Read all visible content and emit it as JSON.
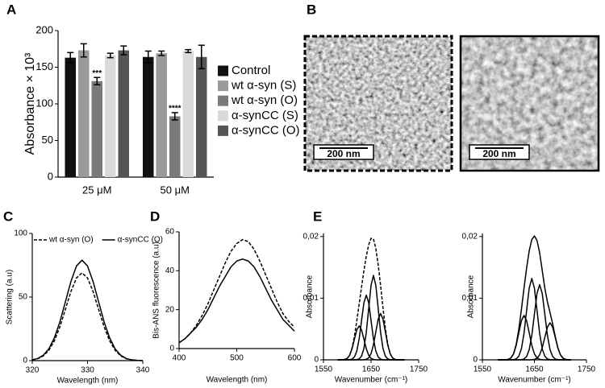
{
  "chart_data": [
    {
      "type": "bar",
      "panel": "A",
      "ylabel": "Absorbance × 10³",
      "categories": [
        "25 μM",
        "50 μM"
      ],
      "series": [
        {
          "name": "Control",
          "color": "#111111",
          "values": [
            163,
            164
          ],
          "errors": [
            7,
            8
          ]
        },
        {
          "name": "wt α-syn (S)",
          "color": "#9a9a9a",
          "values": [
            173,
            169
          ],
          "errors": [
            9,
            3
          ]
        },
        {
          "name": "wt α-syn (O)",
          "color": "#7a7a7a",
          "values": [
            131,
            83
          ],
          "errors": [
            5,
            5
          ],
          "significance": [
            "***",
            "****"
          ]
        },
        {
          "name": "α-synCC (S)",
          "color": "#d9d9d9",
          "values": [
            166,
            172
          ],
          "errors": [
            3,
            2
          ]
        },
        {
          "name": "α-synCC (O)",
          "color": "#555555",
          "values": [
            173,
            164
          ],
          "errors": [
            6,
            16
          ]
        }
      ],
      "ylim": [
        0,
        200
      ],
      "yticks": [
        0,
        50,
        100,
        150,
        200
      ],
      "legend": "right"
    },
    {
      "type": "line",
      "panel": "C",
      "xlabel": "Wavelength (nm)",
      "ylabel": "Scattering (a.u)",
      "x": [
        320,
        321,
        322,
        323,
        324,
        325,
        326,
        327,
        328,
        329,
        330,
        331,
        332,
        333,
        334,
        335,
        336,
        337,
        338,
        339,
        340
      ],
      "series": [
        {
          "name": "wt α-syn (O)",
          "color": "#000000",
          "dash": true,
          "values": [
            0.6,
            1.5,
            3.7,
            8.1,
            15.6,
            26.6,
            40.4,
            54.4,
            65,
            69,
            65,
            54.4,
            40.4,
            26.6,
            15.6,
            8.1,
            3.7,
            1.5,
            0.6,
            0.2,
            0.0
          ]
        },
        {
          "name": "α-synCC (O)",
          "color": "#000000",
          "dash": false,
          "values": [
            0.6,
            1.7,
            4.3,
            9.3,
            17.9,
            30.5,
            46.3,
            62.3,
            74.4,
            79,
            74.4,
            62.3,
            46.3,
            30.5,
            17.9,
            9.3,
            4.3,
            1.7,
            0.6,
            0.2,
            0.1
          ]
        }
      ],
      "xlim": [
        320,
        340
      ],
      "xticks": [
        320,
        330,
        340
      ],
      "ylim": [
        0,
        100
      ],
      "yticks": [
        0,
        50,
        100
      ],
      "legend": "top"
    },
    {
      "type": "line",
      "panel": "D",
      "xlabel": "Wavelength (nm)",
      "ylabel": "Bis-ANS fluorescence (a.u)",
      "x": [
        400,
        410,
        420,
        430,
        440,
        450,
        460,
        470,
        480,
        490,
        500,
        510,
        520,
        530,
        540,
        550,
        560,
        570,
        580,
        590,
        600
      ],
      "series": [
        {
          "color": "#000000",
          "dash": true,
          "values": [
            3,
            5,
            8,
            12,
            17,
            23,
            30,
            37,
            44,
            50,
            54,
            56,
            55,
            51,
            45,
            38,
            31,
            24,
            18,
            14,
            11
          ]
        },
        {
          "color": "#000000",
          "dash": false,
          "values": [
            3,
            5,
            8,
            11,
            15,
            20,
            26,
            32,
            37,
            42,
            45,
            46,
            45,
            42,
            37,
            31,
            25,
            20,
            15,
            12,
            9
          ]
        }
      ],
      "xlim": [
        400,
        600
      ],
      "xticks": [
        400,
        500,
        600
      ],
      "ylim": [
        0,
        60
      ],
      "yticks": [
        0,
        20,
        40,
        60
      ]
    },
    {
      "type": "line",
      "panel": "E",
      "xlabel": "Wavenumber (cm⁻¹)",
      "ylabel": "Absorbance",
      "x": [
        1580,
        1585,
        1590,
        1595,
        1600,
        1605,
        1610,
        1615,
        1620,
        1625,
        1630,
        1635,
        1640,
        1645,
        1650,
        1655,
        1660,
        1665,
        1670,
        1675,
        1680,
        1685,
        1690,
        1695,
        1700,
        1705,
        1710,
        1715,
        1720
      ],
      "series": [
        {
          "color": "#000000",
          "dash": true,
          "values": [
            0,
            0,
            1e-05,
            6e-05,
            0.00024,
            0.00076,
            0.00191,
            0.0038,
            0.0063,
            0.00906,
            0.01182,
            0.01448,
            0.01682,
            0.01865,
            0.01971,
            0.01961,
            0.01807,
            0.01539,
            0.01207,
            0.00849,
            0.00515,
            0.00259,
            0.00104,
            0.00033,
            8e-05,
            2e-05,
            0,
            0,
            0
          ]
        },
        {
          "color": "#000000",
          "dash": false,
          "values": [
            0,
            0,
            1e-05,
            6e-05,
            0.00024,
            0.00074,
            0.00179,
            0.00334,
            0.00485,
            0.0055,
            0.00485,
            0.00334,
            0.00179,
            0.00074,
            0.00024,
            6e-05,
            1e-05,
            0,
            0,
            0,
            0,
            0,
            0,
            0,
            0,
            0,
            0,
            0,
            0
          ]
        },
        {
          "color": "#000000",
          "dash": false,
          "values": [
            0,
            0,
            0,
            0,
            0,
            2e-05,
            0.00012,
            0.00046,
            0.00142,
            0.00341,
            0.00637,
            0.00927,
            0.0105,
            0.00927,
            0.00637,
            0.00341,
            0.00142,
            0.00046,
            0.00012,
            2e-05,
            0,
            0,
            0,
            0,
            0,
            0,
            0,
            0,
            0
          ]
        },
        {
          "color": "#000000",
          "dash": false,
          "values": [
            0,
            0,
            0,
            0,
            0,
            0,
            0,
            0,
            3e-05,
            0.00015,
            0.0006,
            0.00185,
            0.00445,
            0.00831,
            0.01209,
            0.0137,
            0.01209,
            0.00831,
            0.00445,
            0.00185,
            0.0006,
            0.00015,
            3e-05,
            0,
            0,
            0,
            0,
            0,
            0
          ]
        },
        {
          "color": "#000000",
          "dash": false,
          "values": [
            0,
            0,
            0,
            0,
            0,
            0,
            0,
            0,
            0,
            0,
            0,
            2e-05,
            8e-05,
            0.00033,
            0.00101,
            0.00244,
            0.00455,
            0.00662,
            0.0075,
            0.00662,
            0.00455,
            0.00244,
            0.00101,
            0.00033,
            8e-05,
            2e-05,
            0,
            0,
            0
          ]
        }
      ],
      "xlim": [
        1550,
        1750
      ],
      "xticks": [
        1550,
        1650,
        1750
      ],
      "ylim": [
        0,
        0.0205
      ],
      "yticks": [
        0,
        {
          "value": 0.01,
          "label": "0,01"
        },
        {
          "value": 0.02,
          "label": "0,02"
        }
      ]
    },
    {
      "type": "line",
      "xlabel": "Wavenumber (cm⁻¹)",
      "ylabel": "Absorbance",
      "x": [
        1580,
        1585,
        1590,
        1595,
        1600,
        1605,
        1610,
        1615,
        1620,
        1625,
        1630,
        1635,
        1640,
        1645,
        1650,
        1655,
        1660,
        1665,
        1670,
        1675,
        1680,
        1685,
        1690,
        1695,
        1700,
        1705,
        1710,
        1715,
        1720
      ],
      "series": [
        {
          "color": "#000000",
          "dash": false,
          "values": [
            0,
            0,
            0,
            2e-05,
            8e-05,
            0.00032,
            0.001,
            0.00249,
            0.00495,
            0.00817,
            0.01163,
            0.0149,
            0.01767,
            0.01951,
            0.02009,
            0.01936,
            0.01738,
            0.01453,
            0.01162,
            0.00941,
            0.00768,
            0.00584,
            0.00378,
            0.00198,
            0.00081,
            0.00026,
            7e-05,
            1e-05,
            0
          ]
        },
        {
          "color": "#000000",
          "dash": false,
          "values": [
            0,
            0,
            0,
            2e-05,
            8e-05,
            0.00032,
            0.00097,
            0.00234,
            0.00437,
            0.00635,
            0.0072,
            0.00635,
            0.00437,
            0.00234,
            0.00097,
            0.00032,
            8e-05,
            2e-05,
            0,
            0,
            0,
            0,
            0,
            0,
            0,
            0,
            0,
            0,
            0
          ]
        },
        {
          "color": "#000000",
          "dash": false,
          "values": [
            0,
            0,
            0,
            0,
            0,
            0,
            3e-05,
            0.00015,
            0.00058,
            0.00179,
            0.00429,
            0.00801,
            0.01165,
            0.0132,
            0.01165,
            0.00801,
            0.00429,
            0.00179,
            0.00058,
            0.00015,
            3e-05,
            0,
            0,
            0,
            0,
            0,
            0,
            0,
            0
          ]
        },
        {
          "color": "#000000",
          "dash": false,
          "values": [
            0,
            0,
            0,
            0,
            0,
            0,
            0,
            0,
            0,
            3e-05,
            0.00014,
            0.00054,
            0.00165,
            0.00396,
            0.0074,
            0.01077,
            0.0122,
            0.01077,
            0.0074,
            0.00396,
            0.00165,
            0.00054,
            0.00014,
            3e-05,
            0,
            0,
            0,
            0,
            0
          ]
        },
        {
          "color": "#000000",
          "dash": false,
          "values": [
            0,
            0,
            0,
            0,
            0,
            0,
            0,
            0,
            0,
            0,
            0,
            0,
            0,
            1e-05,
            7e-05,
            0.00026,
            0.00081,
            0.00195,
            0.00364,
            0.0053,
            0.006,
            0.0053,
            0.00364,
            0.00195,
            0.00081,
            0.00026,
            7e-05,
            1e-05,
            0
          ]
        }
      ],
      "xlim": [
        1550,
        1750
      ],
      "xticks": [
        1550,
        1650,
        1750
      ],
      "ylim": [
        0,
        0.0205
      ],
      "yticks": [
        0,
        {
          "value": 0.01,
          "label": "0,01"
        },
        {
          "value": 0.02,
          "label": "0,02"
        }
      ]
    }
  ],
  "micrographs": {
    "panel": "B",
    "scale_bars": [
      "200 nm",
      "200 nm"
    ]
  }
}
